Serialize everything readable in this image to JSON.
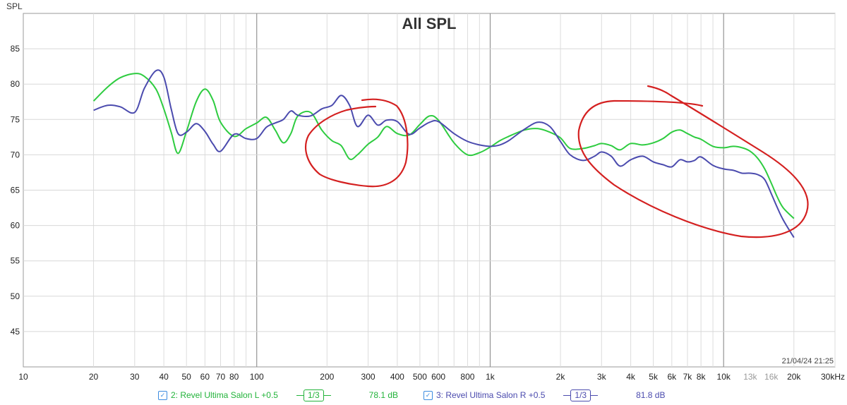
{
  "chart_data": {
    "type": "line",
    "title": "All SPL",
    "ylabel": "SPL",
    "xlabel": "",
    "xscale": "log",
    "xlim": [
      10,
      30000
    ],
    "ylim": [
      40,
      90
    ],
    "grid": true,
    "y_ticks": [
      {
        "value": 85,
        "label": "85"
      },
      {
        "value": 80,
        "label": "80"
      },
      {
        "value": 75,
        "label": "75"
      },
      {
        "value": 70,
        "label": "70"
      },
      {
        "value": 65,
        "label": "65"
      },
      {
        "value": 60,
        "label": "60"
      },
      {
        "value": 55,
        "label": "55"
      },
      {
        "value": 50,
        "label": "50"
      },
      {
        "value": 45,
        "label": "45"
      }
    ],
    "x_ticks": [
      {
        "value": 10,
        "label": "10"
      },
      {
        "value": 20,
        "label": "20"
      },
      {
        "value": 30,
        "label": "30"
      },
      {
        "value": 40,
        "label": "40"
      },
      {
        "value": 50,
        "label": "50"
      },
      {
        "value": 60,
        "label": "60"
      },
      {
        "value": 70,
        "label": "70"
      },
      {
        "value": 80,
        "label": "80"
      },
      {
        "value": 100,
        "label": "100"
      },
      {
        "value": 200,
        "label": "200"
      },
      {
        "value": 300,
        "label": "300"
      },
      {
        "value": 400,
        "label": "400"
      },
      {
        "value": 500,
        "label": "500"
      },
      {
        "value": 600,
        "label": "600"
      },
      {
        "value": 800,
        "label": "800"
      },
      {
        "value": 1000,
        "label": "1k"
      },
      {
        "value": 2000,
        "label": "2k"
      },
      {
        "value": 3000,
        "label": "3k"
      },
      {
        "value": 4000,
        "label": "4k"
      },
      {
        "value": 5000,
        "label": "5k"
      },
      {
        "value": 6000,
        "label": "6k"
      },
      {
        "value": 7000,
        "label": "7k"
      },
      {
        "value": 8000,
        "label": "8k"
      },
      {
        "value": 10000,
        "label": "10k"
      },
      {
        "value": 13000,
        "label": "13k",
        "muted": true
      },
      {
        "value": 16000,
        "label": "16k",
        "muted": true
      },
      {
        "value": 20000,
        "label": "20k"
      },
      {
        "value": 30000,
        "label": "30kHz"
      }
    ],
    "timestamp": "21/04/24 21:25",
    "series": [
      {
        "name": "2: Revel Ultima Salon L +0.5",
        "color": "#2ecc40",
        "x": [
          20,
          23,
          26,
          30,
          33,
          37,
          40,
          43,
          46,
          50,
          55,
          60,
          65,
          70,
          80,
          90,
          100,
          110,
          120,
          130,
          140,
          150,
          170,
          190,
          210,
          230,
          250,
          270,
          300,
          330,
          360,
          400,
          450,
          500,
          550,
          600,
          700,
          800,
          900,
          1000,
          1100,
          1200,
          1400,
          1600,
          1800,
          2000,
          2200,
          2500,
          2800,
          3000,
          3300,
          3600,
          4000,
          4500,
          5000,
          5500,
          6000,
          6500,
          7000,
          7500,
          8000,
          9000,
          10000,
          11000,
          12000,
          13000,
          14000,
          15000,
          16000,
          17000,
          18000,
          20000
        ],
        "y": [
          77.6,
          79.6,
          80.9,
          81.5,
          81.1,
          79.3,
          76.5,
          73.2,
          70.2,
          73.3,
          77.5,
          79.3,
          77.7,
          74.6,
          72.6,
          73.7,
          74.5,
          75.3,
          73.5,
          71.7,
          73.0,
          75.5,
          76.0,
          73.5,
          72.0,
          71.3,
          69.4,
          70.0,
          71.5,
          72.5,
          74.0,
          73.0,
          72.8,
          74.3,
          75.5,
          74.9,
          71.7,
          70.0,
          70.3,
          71.1,
          72.0,
          72.6,
          73.5,
          73.7,
          73.2,
          72.4,
          70.9,
          70.9,
          71.3,
          71.6,
          71.3,
          70.7,
          71.6,
          71.4,
          71.7,
          72.3,
          73.2,
          73.5,
          73.0,
          72.5,
          72.2,
          71.2,
          71.0,
          71.2,
          71.0,
          70.5,
          69.5,
          68.0,
          66.0,
          64.0,
          62.5,
          61.0
        ]
      },
      {
        "name": "3: Revel Ultima Salon R +0.5",
        "color": "#4b4bae",
        "x": [
          20,
          23,
          26,
          30,
          33,
          37,
          40,
          43,
          46,
          50,
          55,
          60,
          65,
          70,
          80,
          90,
          100,
          110,
          120,
          130,
          140,
          150,
          170,
          190,
          210,
          230,
          250,
          270,
          300,
          330,
          360,
          400,
          450,
          500,
          550,
          600,
          700,
          800,
          900,
          1000,
          1100,
          1200,
          1400,
          1600,
          1800,
          2000,
          2200,
          2500,
          2800,
          3000,
          3300,
          3600,
          4000,
          4500,
          5000,
          5500,
          6000,
          6500,
          7000,
          7500,
          8000,
          9000,
          10000,
          11000,
          12000,
          13000,
          14000,
          15000,
          16000,
          17000,
          18000,
          20000
        ],
        "y": [
          76.3,
          77.0,
          76.8,
          76.0,
          79.4,
          81.9,
          81.0,
          76.5,
          73.0,
          73.2,
          74.4,
          73.3,
          71.5,
          70.5,
          72.9,
          72.3,
          72.3,
          73.9,
          74.5,
          75.0,
          76.2,
          75.6,
          75.5,
          76.5,
          77.0,
          78.4,
          77.0,
          74.0,
          75.6,
          74.2,
          74.9,
          74.7,
          72.9,
          73.8,
          74.6,
          74.7,
          73.0,
          71.9,
          71.4,
          71.2,
          71.4,
          72.0,
          73.6,
          74.6,
          74.0,
          71.9,
          70.0,
          69.2,
          69.8,
          70.4,
          69.8,
          68.4,
          69.3,
          69.8,
          69.0,
          68.6,
          68.3,
          69.3,
          69.0,
          69.2,
          69.7,
          68.5,
          68.0,
          67.8,
          67.4,
          67.4,
          67.2,
          66.5,
          64.5,
          62.5,
          60.8,
          58.3
        ]
      }
    ],
    "legend": [
      {
        "label": "2: Revel Ultima Salon L +0.5",
        "smoothing": "1/3",
        "level": "78.1 dB"
      },
      {
        "label": "3: Revel Ultima Salon R +0.5",
        "smoothing": "1/3",
        "level": "81.8 dB"
      }
    ]
  },
  "annotations": {
    "color": "#d42020"
  }
}
